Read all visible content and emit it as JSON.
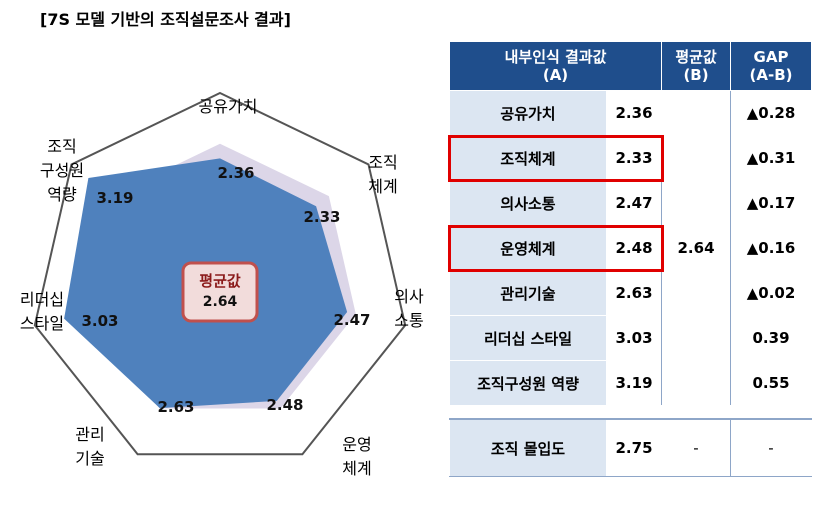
{
  "title": "[7S 모델 기반의 조직설문조사 결과]",
  "colors": {
    "heptagon_outline": "#555555",
    "average_area": "#dcd6e8",
    "score_area": "#4f81bd",
    "header_bg": "#1f4e8c",
    "item_bg": "#dce6f2",
    "highlight": "#e00000",
    "center_border": "#c0504d",
    "center_fill": "#f2dcdb"
  },
  "chart_data": {
    "type": "radar",
    "categories": [
      "공유가치",
      "조직체계",
      "의사소통",
      "운영체계",
      "관리기술",
      "리더십 스타일",
      "조직구성원 역량"
    ],
    "axis_labels": [
      [
        "공유가치"
      ],
      [
        "조직",
        "체계"
      ],
      [
        "의사",
        "소통"
      ],
      [
        "운영",
        "체계"
      ],
      [
        "관리",
        "기술"
      ],
      [
        "리더십",
        "스타일"
      ],
      [
        "조직",
        "구성원",
        "역량"
      ]
    ],
    "value_labels": [
      "2.36",
      "2.33",
      "2.47",
      "2.48",
      "2.63",
      "3.03",
      "3.19"
    ],
    "series": [
      {
        "values": [
          2.36,
          2.33,
          2.47,
          2.48,
          2.63,
          3.03,
          3.19
        ]
      },
      {
        "values": [
          2.64,
          2.64,
          2.64,
          2.64,
          2.64,
          2.64,
          2.64
        ]
      }
    ],
    "center_title": "평균값",
    "center_value": "2.64",
    "rlim": [
      0,
      3.6
    ]
  },
  "table": {
    "headers": {
      "col1_line1": "내부인식 결과값",
      "col1_line2": "(A)",
      "col2_line1": "평균값",
      "col2_line2": "(B)",
      "col3_line1": "GAP",
      "col3_line2": "(A-B)"
    },
    "rows": [
      {
        "item": "공유가치",
        "value": "2.36",
        "gap": "▲0.28"
      },
      {
        "item": "조직체계",
        "value": "2.33",
        "gap": "▲0.31"
      },
      {
        "item": "의사소통",
        "value": "2.47",
        "gap": "▲0.17"
      },
      {
        "item": "운영체계",
        "value": "2.48",
        "gap": "▲0.16"
      },
      {
        "item": "관리기술",
        "value": "2.63",
        "gap": "▲0.02"
      },
      {
        "item": "리더십 스타일",
        "value": "3.03",
        "gap": "0.39"
      },
      {
        "item": "조직구성원 역량",
        "value": "3.19",
        "gap": "0.55"
      }
    ],
    "average": "2.64",
    "highlighted_items": [
      "조직체계",
      "운영체계"
    ],
    "total": {
      "item": "조직 몰입도",
      "value": "2.75",
      "average": "-",
      "gap": "-"
    }
  }
}
